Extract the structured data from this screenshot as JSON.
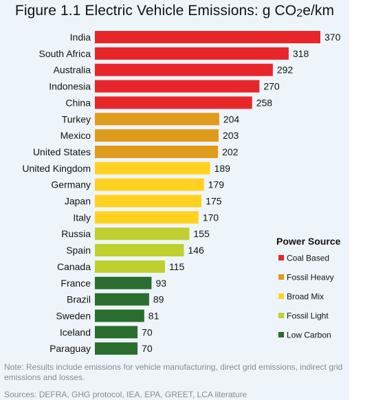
{
  "chart_data": {
    "type": "bar",
    "orientation": "horizontal",
    "title": "Figure 1.1  Electric Vehicle Emissions: g CO2e/km",
    "categories": [
      "India",
      "South Africa",
      "Australia",
      "Indonesia",
      "China",
      "Turkey",
      "Mexico",
      "United States",
      "United Kingdom",
      "Germany",
      "Japan",
      "Italy",
      "Russia",
      "Spain",
      "Canada",
      "France",
      "Brazil",
      "Sweden",
      "Iceland",
      "Paraguay"
    ],
    "values": [
      370,
      318,
      292,
      270,
      258,
      204,
      203,
      202,
      189,
      179,
      175,
      170,
      155,
      146,
      115,
      93,
      89,
      81,
      70,
      70
    ],
    "groups": [
      "Coal Based",
      "Coal Based",
      "Coal Based",
      "Coal Based",
      "Coal Based",
      "Fossil Heavy",
      "Fossil Heavy",
      "Fossil Heavy",
      "Broad Mix",
      "Broad Mix",
      "Broad Mix",
      "Broad Mix",
      "Fossil Light",
      "Fossil Light",
      "Fossil Light",
      "Low Carbon",
      "Low Carbon",
      "Low Carbon",
      "Low Carbon",
      "Low Carbon"
    ],
    "xlim": [
      0,
      370
    ],
    "grid": false,
    "legend": {
      "title": "Power Source",
      "placement": "bottom-right",
      "entries": [
        {
          "name": "Coal Based",
          "color": "#e8262a"
        },
        {
          "name": "Fossil Heavy",
          "color": "#e09a1c"
        },
        {
          "name": "Broad Mix",
          "color": "#ffd21f"
        },
        {
          "name": "Fossil Light",
          "color": "#bfd02f"
        },
        {
          "name": "Low Carbon",
          "color": "#2a6d2e"
        }
      ]
    }
  },
  "note": "Note:  Results include emissions for vehicle manufacturing, direct grid emissions, indirect grid emissions and losses.",
  "sources": "Sources: DEFRA, GHG protocol, IEA, EPA, GREET, LCA literature"
}
